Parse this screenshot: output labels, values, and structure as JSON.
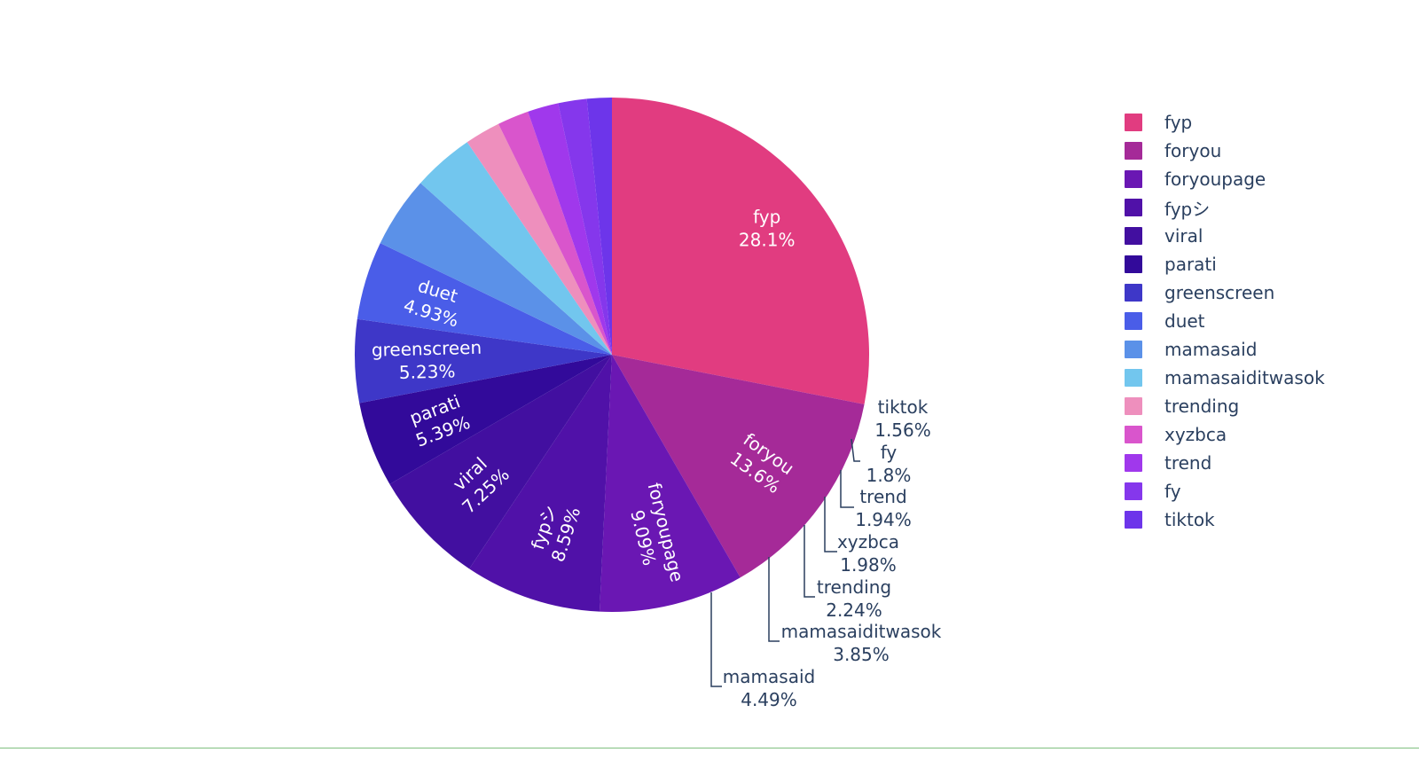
{
  "chart_data": {
    "type": "pie",
    "title": "",
    "legend_position": "right",
    "direction": "clockwise",
    "start_angle": "top",
    "slices": [
      {
        "label": "fyp",
        "percent_label": "28.1%",
        "value": 28.1,
        "color": "#e13c80"
      },
      {
        "label": "foryou",
        "percent_label": "13.6%",
        "value": 13.6,
        "color": "#a52a98"
      },
      {
        "label": "foryoupage",
        "percent_label": "9.09%",
        "value": 9.09,
        "color": "#6a17b3"
      },
      {
        "label": "fypシ",
        "percent_label": "8.59%",
        "value": 8.59,
        "color": "#5011a8"
      },
      {
        "label": "viral",
        "percent_label": "7.25%",
        "value": 7.25,
        "color": "#420fa0"
      },
      {
        "label": "parati",
        "percent_label": "5.39%",
        "value": 5.39,
        "color": "#320a9a"
      },
      {
        "label": "greenscreen",
        "percent_label": "5.23%",
        "value": 5.23,
        "color": "#3e37c8"
      },
      {
        "label": "duet",
        "percent_label": "4.93%",
        "value": 4.93,
        "color": "#4a5de8"
      },
      {
        "label": "mamasaid",
        "percent_label": "4.49%",
        "value": 4.49,
        "color": "#5b91e8"
      },
      {
        "label": "mamasaiditwasok",
        "percent_label": "3.85%",
        "value": 3.85,
        "color": "#72c6ee"
      },
      {
        "label": "trending",
        "percent_label": "2.24%",
        "value": 2.24,
        "color": "#ee8fbd"
      },
      {
        "label": "xyzbca",
        "percent_label": "1.98%",
        "value": 1.98,
        "color": "#d955cc"
      },
      {
        "label": "trend",
        "percent_label": "1.94%",
        "value": 1.94,
        "color": "#a038ec"
      },
      {
        "label": "fy",
        "percent_label": "1.8%",
        "value": 1.8,
        "color": "#8537ec"
      },
      {
        "label": "tiktok",
        "percent_label": "1.56%",
        "value": 1.56,
        "color": "#6d35ea"
      }
    ]
  }
}
